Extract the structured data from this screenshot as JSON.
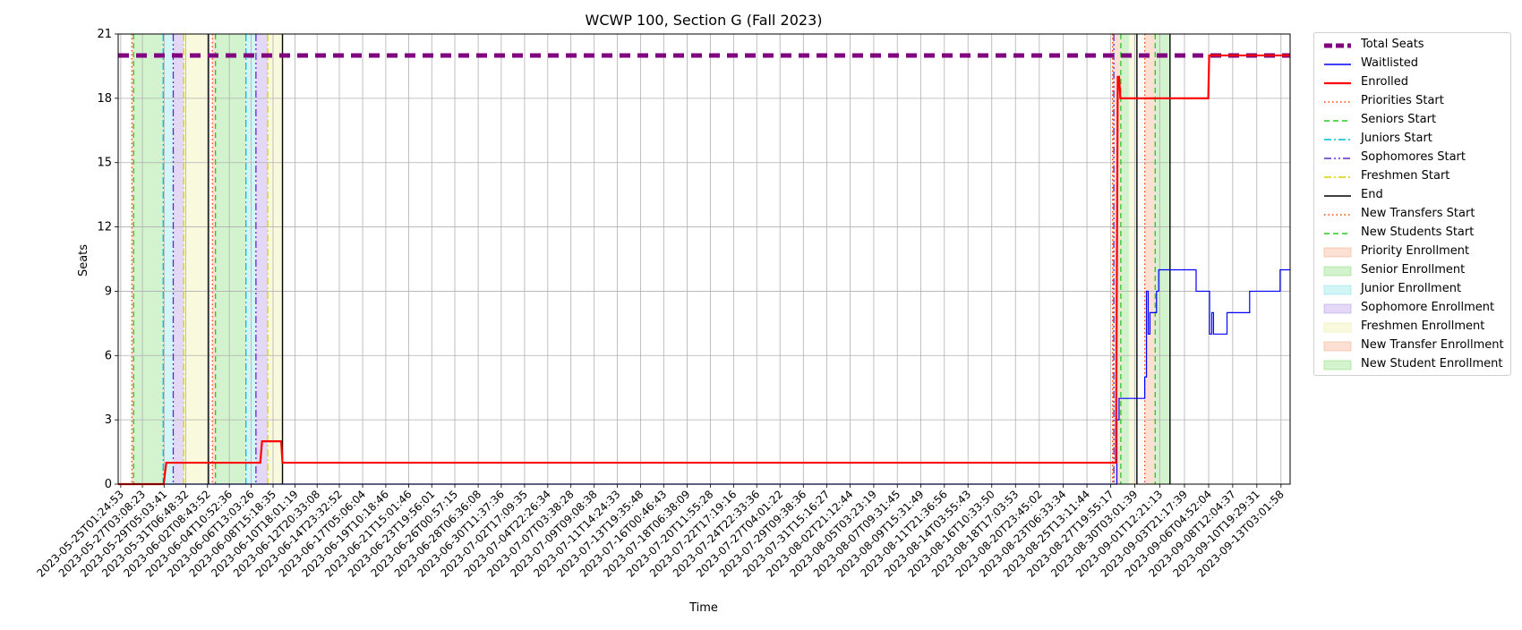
{
  "chart_data": {
    "type": "line",
    "title": "WCWP 100, Section G (Fall 2023)",
    "xlabel": "Time",
    "ylabel": "Seats",
    "ylim": [
      0,
      21
    ],
    "yticks": [
      0,
      3,
      6,
      9,
      12,
      15,
      18,
      21
    ],
    "grid": true,
    "legend_placement": "outside right, top",
    "x_range": [
      "2023-05-24T19:30:00",
      "2023-09-14T00:00:00"
    ],
    "xtick_labels": [
      "2023-05-25T01:24:53",
      "2023-05-27T03:08:23",
      "2023-05-29T05:03:41",
      "2023-05-31T06:48:32",
      "2023-06-02T08:43:52",
      "2023-06-04T10:52:36",
      "2023-06-06T13:03:26",
      "2023-06-08T15:18:35",
      "2023-06-10T18:01:19",
      "2023-06-12T20:33:08",
      "2023-06-14T23:32:52",
      "2023-06-17T05:06:04",
      "2023-06-19T10:18:46",
      "2023-06-21T15:01:46",
      "2023-06-23T19:56:01",
      "2023-06-26T00:57:15",
      "2023-06-28T06:36:08",
      "2023-06-30T11:37:36",
      "2023-07-02T17:09:35",
      "2023-07-04T22:26:34",
      "2023-07-07T03:38:28",
      "2023-07-09T09:08:38",
      "2023-07-11T14:24:33",
      "2023-07-13T19:35:48",
      "2023-07-16T00:46:43",
      "2023-07-18T06:38:09",
      "2023-07-20T11:55:28",
      "2023-07-22T17:19:16",
      "2023-07-24T22:33:36",
      "2023-07-27T04:01:22",
      "2023-07-29T09:38:36",
      "2023-07-31T15:16:27",
      "2023-08-02T21:12:44",
      "2023-08-05T03:23:19",
      "2023-08-07T09:31:45",
      "2023-08-09T15:31:49",
      "2023-08-11T21:36:56",
      "2023-08-14T03:55:43",
      "2023-08-16T10:33:50",
      "2023-08-18T17:03:53",
      "2023-08-20T23:45:02",
      "2023-08-23T06:33:34",
      "2023-08-25T13:11:44",
      "2023-08-27T19:55:17",
      "2023-08-30T03:01:39",
      "2023-09-01T12:21:13",
      "2023-09-03T21:17:39",
      "2023-09-06T04:52:04",
      "2023-09-08T12:04:37",
      "2023-09-10T19:29:31",
      "2023-09-13T03:01:58"
    ],
    "series": [
      {
        "name": "Total Seats",
        "color": "#800080",
        "style": "dashed-thick",
        "width": 5,
        "points": [
          [
            "2023-05-24T19:30:00",
            20
          ],
          [
            "2023-09-14T00:00:00",
            20
          ]
        ]
      },
      {
        "name": "Waitlisted",
        "color": "#0000ff",
        "style": "solid",
        "width": 1.2,
        "points": [
          [
            "2023-05-24T19:30:00",
            0
          ],
          [
            "2023-08-28T10:00:00",
            0
          ],
          [
            "2023-08-28T10:00:00",
            3
          ],
          [
            "2023-08-28T15:00:00",
            3
          ],
          [
            "2023-08-28T15:00:00",
            4
          ],
          [
            "2023-08-31T02:00:00",
            4
          ],
          [
            "2023-08-31T02:00:00",
            5
          ],
          [
            "2023-08-31T06:00:00",
            5
          ],
          [
            "2023-08-31T06:00:00",
            9
          ],
          [
            "2023-08-31T10:00:00",
            9
          ],
          [
            "2023-08-31T10:00:00",
            7
          ],
          [
            "2023-08-31T14:00:00",
            7
          ],
          [
            "2023-08-31T14:00:00",
            8
          ],
          [
            "2023-09-01T05:00:00",
            8
          ],
          [
            "2023-09-01T05:00:00",
            9
          ],
          [
            "2023-09-01T10:00:00",
            9
          ],
          [
            "2023-09-01T10:00:00",
            10
          ],
          [
            "2023-09-05T00:00:00",
            10
          ],
          [
            "2023-09-05T00:00:00",
            9
          ],
          [
            "2023-09-06T07:00:00",
            9
          ],
          [
            "2023-09-06T07:00:00",
            7
          ],
          [
            "2023-09-06T12:00:00",
            7
          ],
          [
            "2023-09-06T12:00:00",
            8
          ],
          [
            "2023-09-06T16:00:00",
            8
          ],
          [
            "2023-09-06T16:00:00",
            7
          ],
          [
            "2023-09-07T23:00:00",
            7
          ],
          [
            "2023-09-07T23:00:00",
            8
          ],
          [
            "2023-09-10T03:00:00",
            8
          ],
          [
            "2023-09-10T03:00:00",
            9
          ],
          [
            "2023-09-13T01:00:00",
            9
          ],
          [
            "2023-09-13T01:00:00",
            10
          ],
          [
            "2023-09-14T00:00:00",
            10
          ]
        ]
      },
      {
        "name": "Enrolled",
        "color": "#ff0000",
        "style": "solid",
        "width": 2.2,
        "points": [
          [
            "2023-05-24T19:30:00",
            0
          ],
          [
            "2023-05-29T04:00:00",
            0
          ],
          [
            "2023-05-29T10:00:00",
            1
          ],
          [
            "2023-06-07T10:00:00",
            1
          ],
          [
            "2023-06-07T14:00:00",
            2
          ],
          [
            "2023-06-09T10:00:00",
            2
          ],
          [
            "2023-06-09T13:00:00",
            1
          ],
          [
            "2023-08-28T08:00:00",
            1
          ],
          [
            "2023-08-28T12:00:00",
            19
          ],
          [
            "2023-08-28T15:00:00",
            19
          ],
          [
            "2023-08-28T18:00:00",
            18
          ],
          [
            "2023-09-06T04:00:00",
            18
          ],
          [
            "2023-09-06T06:00:00",
            20
          ],
          [
            "2023-09-14T00:00:00",
            20
          ]
        ]
      }
    ],
    "phases": [
      {
        "name": "Priority Enrollment",
        "start": "2023-05-26T03:00:00",
        "end": "2023-05-26T07:00:00",
        "color": "#f4a582"
      },
      {
        "name": "Senior Enrollment",
        "start": "2023-05-26T07:00:00",
        "end": "2023-05-29T03:00:00",
        "color": "#7fdc6f"
      },
      {
        "name": "Junior Enrollment",
        "start": "2023-05-29T03:00:00",
        "end": "2023-05-30T02:00:00",
        "color": "#7fe3e3"
      },
      {
        "name": "Sophomore Enrollment",
        "start": "2023-05-30T02:00:00",
        "end": "2023-05-31T02:00:00",
        "color": "#b08fe6"
      },
      {
        "name": "Freshmen Enrollment",
        "start": "2023-05-31T02:00:00",
        "end": "2023-06-02T11:00:00",
        "color": "#eeeea0"
      },
      {
        "name": "Priority Enrollment",
        "start": "2023-06-02T20:00:00",
        "end": "2023-06-03T03:00:00",
        "color": "#f4a582"
      },
      {
        "name": "Senior Enrollment",
        "start": "2023-06-03T03:00:00",
        "end": "2023-06-06T01:00:00",
        "color": "#7fdc6f"
      },
      {
        "name": "Junior Enrollment",
        "start": "2023-06-06T01:00:00",
        "end": "2023-06-07T00:00:00",
        "color": "#7fe3e3"
      },
      {
        "name": "Sophomore Enrollment",
        "start": "2023-06-07T00:00:00",
        "end": "2023-06-08T03:00:00",
        "color": "#b08fe6"
      },
      {
        "name": "Freshmen Enrollment",
        "start": "2023-06-08T03:00:00",
        "end": "2023-06-09T13:00:00",
        "color": "#eeeea0"
      },
      {
        "name": "New Transfer Enrollment",
        "start": "2023-08-28T00:00:00",
        "end": "2023-08-28T19:00:00",
        "color": "#f4a582"
      },
      {
        "name": "New Student Enrollment",
        "start": "2023-08-28T19:00:00",
        "end": "2023-08-29T14:00:00",
        "color": "#7fdc6f"
      },
      {
        "name": "Freshmen Enrollment",
        "start": "2023-08-29T14:00:00",
        "end": "2023-08-30T08:00:00",
        "color": "#eeeea0"
      },
      {
        "name": "New Transfer Enrollment",
        "start": "2023-08-31T02:00:00",
        "end": "2023-09-01T02:00:00",
        "color": "#f4a582"
      },
      {
        "name": "New Student Enrollment",
        "start": "2023-09-01T02:00:00",
        "end": "2023-09-02T12:00:00",
        "color": "#7fdc6f"
      }
    ],
    "markers": [
      {
        "name": "Priorities Start",
        "at": "2023-05-26T03:00:00",
        "color": "#ff4500",
        "style": "dotted"
      },
      {
        "name": "Seniors Start",
        "at": "2023-05-26T07:00:00",
        "color": "#22cc22",
        "style": "dashed"
      },
      {
        "name": "Juniors Start",
        "at": "2023-05-29T03:00:00",
        "color": "#00bcd4",
        "style": "dashdot"
      },
      {
        "name": "Sophomores Start",
        "at": "2023-05-30T02:00:00",
        "color": "#5b2ccf",
        "style": "dashdotdot"
      },
      {
        "name": "Freshmen Start",
        "at": "2023-05-31T02:00:00",
        "color": "#d4d400",
        "style": "dashdot"
      },
      {
        "name": "End",
        "at": "2023-06-02T11:00:00",
        "color": "#000000",
        "style": "solid"
      },
      {
        "name": "Priorities Start",
        "at": "2023-06-02T20:00:00",
        "color": "#ff4500",
        "style": "dotted"
      },
      {
        "name": "Seniors Start",
        "at": "2023-06-03T03:00:00",
        "color": "#22cc22",
        "style": "dashed"
      },
      {
        "name": "Juniors Start",
        "at": "2023-06-06T01:00:00",
        "color": "#00bcd4",
        "style": "dashdot"
      },
      {
        "name": "Sophomores Start",
        "at": "2023-06-07T00:00:00",
        "color": "#5b2ccf",
        "style": "dashdotdot"
      },
      {
        "name": "Freshmen Start",
        "at": "2023-06-08T03:00:00",
        "color": "#d4d400",
        "style": "dashdot"
      },
      {
        "name": "End",
        "at": "2023-06-09T13:00:00",
        "color": "#000000",
        "style": "solid"
      },
      {
        "name": "Sophomores Start",
        "at": "2023-08-28T03:00:00",
        "color": "#5b2ccf",
        "style": "dashdotdot"
      },
      {
        "name": "New Transfers Start",
        "at": "2023-08-28T00:00:00",
        "color": "#ff4500",
        "style": "dotted"
      },
      {
        "name": "New Students Start",
        "at": "2023-08-28T19:00:00",
        "color": "#22cc22",
        "style": "dashed"
      },
      {
        "name": "End",
        "at": "2023-08-30T08:00:00",
        "color": "#000000",
        "style": "solid"
      },
      {
        "name": "New Transfers Start",
        "at": "2023-08-31T02:00:00",
        "color": "#ff4500",
        "style": "dotted"
      },
      {
        "name": "New Students Start",
        "at": "2023-09-01T02:00:00",
        "color": "#22cc22",
        "style": "dashed"
      },
      {
        "name": "End",
        "at": "2023-09-02T12:00:00",
        "color": "#000000",
        "style": "solid"
      }
    ],
    "legend": [
      {
        "label": "Total Seats",
        "kind": "line",
        "color": "#800080",
        "style": "dashed-thick"
      },
      {
        "label": "Waitlisted",
        "kind": "line",
        "color": "#0000ff",
        "style": "solid"
      },
      {
        "label": "Enrolled",
        "kind": "line",
        "color": "#ff0000",
        "style": "solid-thick"
      },
      {
        "label": "Priorities Start",
        "kind": "line",
        "color": "#ff4500",
        "style": "dotted"
      },
      {
        "label": "Seniors Start",
        "kind": "line",
        "color": "#22cc22",
        "style": "dashed"
      },
      {
        "label": "Juniors Start",
        "kind": "line",
        "color": "#00bcd4",
        "style": "dashdot"
      },
      {
        "label": "Sophomores Start",
        "kind": "line",
        "color": "#5b2ccf",
        "style": "dashdotdot"
      },
      {
        "label": "Freshmen Start",
        "kind": "line",
        "color": "#d4d400",
        "style": "dashdot"
      },
      {
        "label": "End",
        "kind": "line",
        "color": "#000000",
        "style": "solid"
      },
      {
        "label": "New Transfers Start",
        "kind": "line",
        "color": "#ff4500",
        "style": "dotted"
      },
      {
        "label": "New Students Start",
        "kind": "line",
        "color": "#22cc22",
        "style": "dashed"
      },
      {
        "label": "Priority Enrollment",
        "kind": "patch",
        "color": "#f4a582"
      },
      {
        "label": "Senior Enrollment",
        "kind": "patch",
        "color": "#7fdc6f"
      },
      {
        "label": "Junior Enrollment",
        "kind": "patch",
        "color": "#7fe3e3"
      },
      {
        "label": "Sophomore Enrollment",
        "kind": "patch",
        "color": "#b08fe6"
      },
      {
        "label": "Freshmen Enrollment",
        "kind": "patch",
        "color": "#eeeea0"
      },
      {
        "label": "New Transfer Enrollment",
        "kind": "patch",
        "color": "#f4a582"
      },
      {
        "label": "New Student Enrollment",
        "kind": "patch",
        "color": "#7fdc6f"
      }
    ]
  }
}
